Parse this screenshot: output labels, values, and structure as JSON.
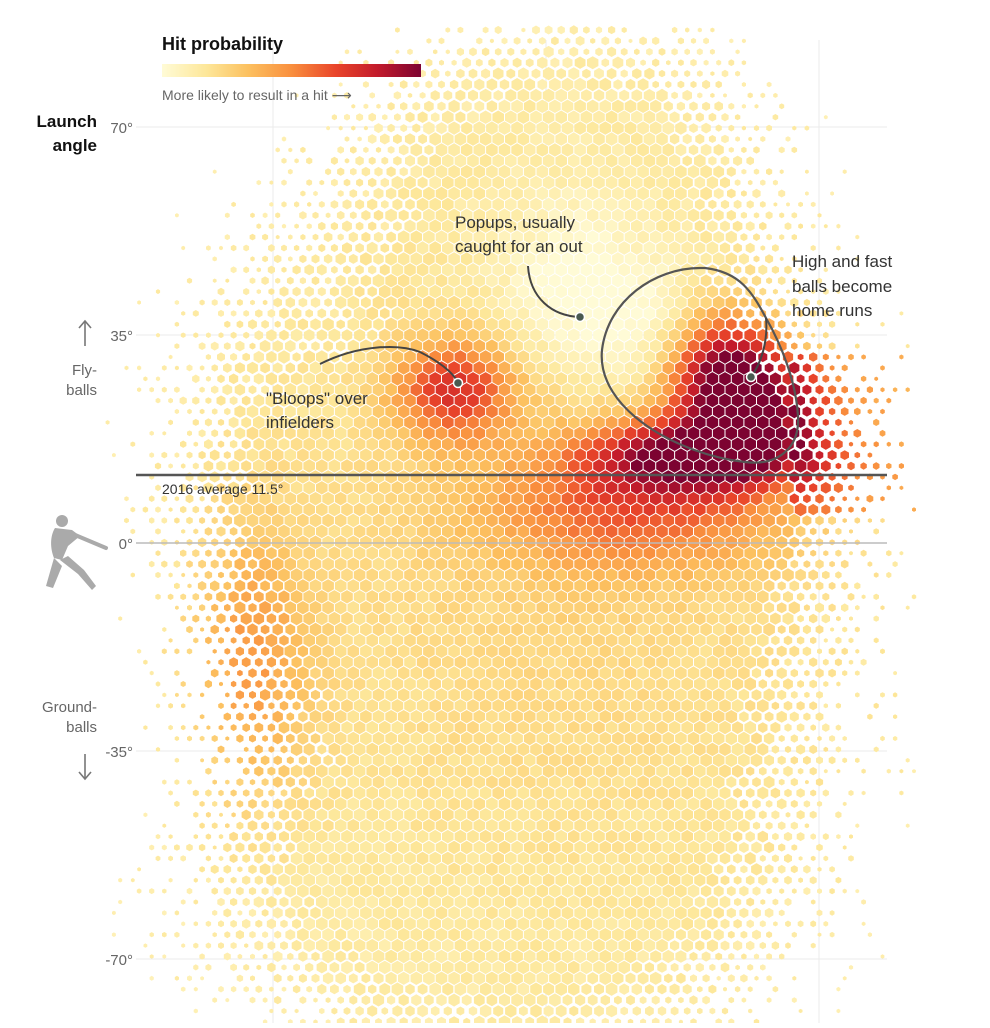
{
  "chart_data": {
    "type": "heatmap",
    "subtype": "hexbin",
    "ylabel": "Launch angle",
    "yticks": [
      70,
      35,
      0,
      -35,
      -70
    ],
    "ytick_labels": [
      "70°",
      "35°",
      "0°",
      "-35°",
      "-70°"
    ],
    "ylim": [
      -80,
      86
    ],
    "grid": true,
    "legend": {
      "title": "Hit probability",
      "caption": "More likely to result in a hit ⟶",
      "placement": "top-left",
      "colors": [
        "#fffbd6",
        "#fde79a",
        "#fcc160",
        "#f98f3e",
        "#e9452a",
        "#c31b2b",
        "#7d0331"
      ]
    },
    "side_labels": {
      "flyballs": [
        "Fly-",
        "balls"
      ],
      "groundballs": [
        "Ground-",
        "balls"
      ]
    },
    "reference_line": {
      "value": 11.5,
      "label": "2016 average 11.5°"
    },
    "annotations": [
      {
        "name": "bloops",
        "lines": [
          "\"Bloops\" over",
          "infielders"
        ]
      },
      {
        "name": "popups",
        "lines": [
          "Popups, usually",
          "caught for an out"
        ]
      },
      {
        "name": "home-runs",
        "lines": [
          "High and fast",
          "balls become",
          "home runs"
        ]
      }
    ],
    "icons": [
      "batter-icon",
      "up-arrow-icon",
      "down-arrow-icon",
      "right-arrow-icon"
    ]
  }
}
